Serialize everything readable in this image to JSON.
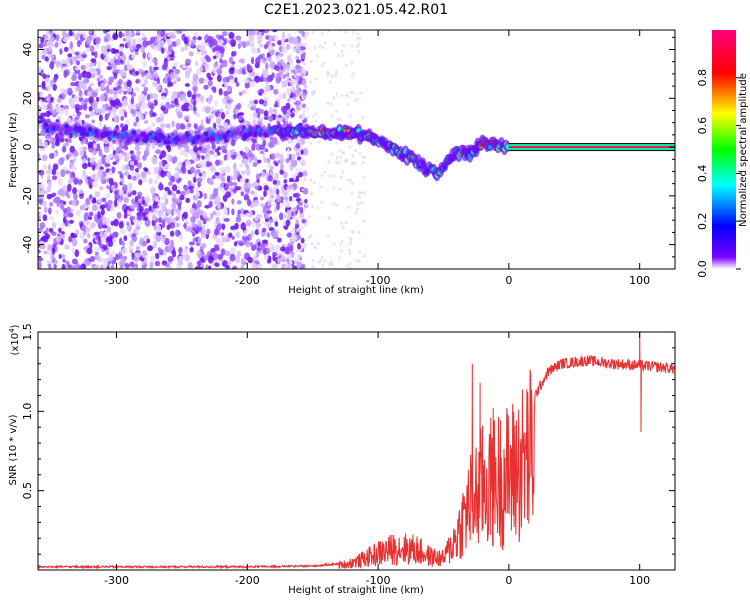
{
  "page": {
    "title": "C2E1.2023.021.05.42.R01"
  },
  "chart_data": [
    {
      "type": "heatmap",
      "xlabel": "Height of straight line (km)",
      "ylabel": "Frequency (Hz)",
      "xlim": [
        -360,
        127
      ],
      "ylim": [
        -50,
        48
      ],
      "xticks": [
        -300,
        -200,
        -100,
        0,
        100
      ],
      "xtick_labels": [
        "-300",
        "-200",
        "-100",
        "0",
        "100"
      ],
      "yticks": [
        -40,
        -20,
        0,
        20,
        40
      ],
      "ytick_labels": [
        "-40",
        "-20",
        "0",
        "20",
        "40"
      ],
      "colorbar": {
        "label": "Normalized spectral amplitude",
        "range": [
          0,
          1
        ],
        "ticks": [
          0.0,
          0.2,
          0.4,
          0.6,
          0.8
        ],
        "tick_labels": [
          "0.0",
          "0.2",
          "0.4",
          "0.6",
          "0.8"
        ],
        "colors": [
          "#ffffff",
          "#7a00ff",
          "#0000ff",
          "#00ffff",
          "#00ff00",
          "#ffff00",
          "#ff0000",
          "#ff0080"
        ]
      },
      "ridge": [
        {
          "x": -350,
          "f": 8
        },
        {
          "x": -300,
          "f": 5
        },
        {
          "x": -250,
          "f": 3
        },
        {
          "x": -220,
          "f": 5
        },
        {
          "x": -180,
          "f": 6
        },
        {
          "x": -150,
          "f": 7
        },
        {
          "x": -130,
          "f": 6
        },
        {
          "x": -110,
          "f": 5
        },
        {
          "x": -95,
          "f": 2
        },
        {
          "x": -80,
          "f": -3
        },
        {
          "x": -65,
          "f": -8
        },
        {
          "x": -55,
          "f": -11
        },
        {
          "x": -48,
          "f": -7
        },
        {
          "x": -40,
          "f": -2
        },
        {
          "x": -30,
          "f": -3
        },
        {
          "x": -20,
          "f": 2
        },
        {
          "x": -10,
          "f": 1
        },
        {
          "x": 0,
          "f": 0
        },
        {
          "x": 127,
          "f": 0
        }
      ],
      "noise_region_x": [
        -360,
        -170
      ]
    },
    {
      "type": "line",
      "xlabel": "Height of straight line (km)",
      "ylabel": "SNR (10 * v/v)",
      "y_multiplier": "(x10",
      "y_multiplier_exp": "4",
      "y_multiplier_close": ")",
      "xlim": [
        -360,
        127
      ],
      "ylim": [
        0,
        15000
      ],
      "xticks": [
        -300,
        -200,
        -100,
        0,
        100
      ],
      "xtick_labels": [
        "-300",
        "-200",
        "-100",
        "0",
        "100"
      ],
      "yticks": [
        5000,
        10000,
        15000
      ],
      "ytick_labels": [
        "0.5",
        "1.0",
        "1.5"
      ],
      "color": "#e83030",
      "envelope": [
        {
          "x": -360,
          "y": 200
        },
        {
          "x": -200,
          "y": 200
        },
        {
          "x": -150,
          "y": 250
        },
        {
          "x": -130,
          "y": 400
        },
        {
          "x": -115,
          "y": 800
        },
        {
          "x": -100,
          "y": 1500
        },
        {
          "x": -85,
          "y": 2000
        },
        {
          "x": -70,
          "y": 1800
        },
        {
          "x": -60,
          "y": 1200
        },
        {
          "x": -50,
          "y": 1000
        },
        {
          "x": -40,
          "y": 3000
        },
        {
          "x": -30,
          "y": 6000
        },
        {
          "x": -20,
          "y": 7500
        },
        {
          "x": -10,
          "y": 8000
        },
        {
          "x": 0,
          "y": 8500
        },
        {
          "x": 10,
          "y": 9500
        },
        {
          "x": 20,
          "y": 11000
        },
        {
          "x": 30,
          "y": 12500
        },
        {
          "x": 40,
          "y": 13000
        },
        {
          "x": 60,
          "y": 13200
        },
        {
          "x": 80,
          "y": 13000
        },
        {
          "x": 100,
          "y": 12900
        },
        {
          "x": 127,
          "y": 12700
        }
      ],
      "spikes": [
        {
          "x": -28,
          "y": 13000
        },
        {
          "x": -22,
          "y": 11800
        },
        {
          "x": -12,
          "y": 10200
        },
        {
          "x": 100,
          "y": 15000
        },
        {
          "x": 101,
          "y": 8700
        }
      ]
    }
  ]
}
